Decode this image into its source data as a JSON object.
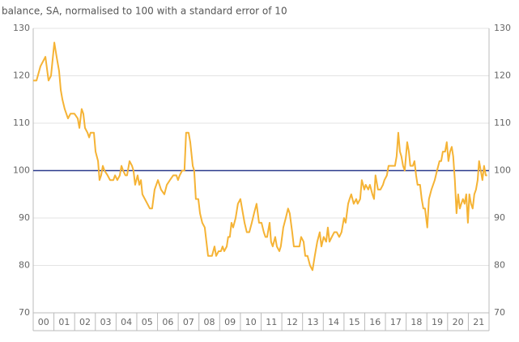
{
  "chart_data": {
    "type": "line",
    "subtitle": "balance, SA, normalised to 100 with a standard error of 10",
    "xlim": [
      2000,
      2022
    ],
    "xticks": [
      {
        "value": 2000,
        "label": "00"
      },
      {
        "value": 2001,
        "label": "01"
      },
      {
        "value": 2002,
        "label": "02"
      },
      {
        "value": 2003,
        "label": "03"
      },
      {
        "value": 2004,
        "label": "04"
      },
      {
        "value": 2005,
        "label": "05"
      },
      {
        "value": 2006,
        "label": "06"
      },
      {
        "value": 2007,
        "label": "07"
      },
      {
        "value": 2008,
        "label": "08"
      },
      {
        "value": 2009,
        "label": "09"
      },
      {
        "value": 2010,
        "label": "10"
      },
      {
        "value": 2011,
        "label": "11"
      },
      {
        "value": 2012,
        "label": "12"
      },
      {
        "value": 2013,
        "label": "13"
      },
      {
        "value": 2014,
        "label": "14"
      },
      {
        "value": 2015,
        "label": "15"
      },
      {
        "value": 2016,
        "label": "16"
      },
      {
        "value": 2017,
        "label": "17"
      },
      {
        "value": 2018,
        "label": "18"
      },
      {
        "value": 2019,
        "label": "19"
      },
      {
        "value": 2020,
        "label": "20"
      },
      {
        "value": 2021,
        "label": "21"
      }
    ],
    "ylim": [
      70,
      130
    ],
    "yticks": [
      70,
      80,
      90,
      100,
      110,
      120,
      130
    ],
    "grid": true,
    "reference_line": {
      "value": 100,
      "color": "#2b3a8c"
    },
    "x": [
      2000.0,
      2000.16,
      2000.35,
      2000.47,
      2000.59,
      2000.74,
      2000.86,
      2001.02,
      2001.13,
      2001.25,
      2001.33,
      2001.41,
      2001.52,
      2001.68,
      2001.8,
      2001.99,
      2002.15,
      2002.23,
      2002.34,
      2002.42,
      2002.5,
      2002.62,
      2002.7,
      2002.77,
      2002.93,
      2003.01,
      2003.13,
      2003.2,
      2003.28,
      2003.36,
      2003.44,
      2003.59,
      2003.71,
      2003.87,
      2003.95,
      2004.06,
      2004.18,
      2004.26,
      2004.34,
      2004.45,
      2004.53,
      2004.65,
      2004.77,
      2004.84,
      2004.92,
      2005.04,
      2005.12,
      2005.2,
      2005.27,
      2005.39,
      2005.51,
      2005.63,
      2005.74,
      2005.86,
      2006.02,
      2006.17,
      2006.33,
      2006.45,
      2006.6,
      2006.76,
      2006.91,
      2006.99,
      2007.07,
      2007.19,
      2007.3,
      2007.38,
      2007.5,
      2007.58,
      2007.7,
      2007.77,
      2007.85,
      2007.97,
      2008.05,
      2008.16,
      2008.28,
      2008.36,
      2008.44,
      2008.63,
      2008.75,
      2008.83,
      2008.95,
      2009.06,
      2009.14,
      2009.22,
      2009.34,
      2009.41,
      2009.49,
      2009.57,
      2009.65,
      2009.77,
      2009.88,
      2010.0,
      2010.12,
      2010.2,
      2010.31,
      2010.43,
      2010.55,
      2010.66,
      2010.78,
      2010.9,
      2011.02,
      2011.13,
      2011.21,
      2011.29,
      2011.41,
      2011.48,
      2011.56,
      2011.68,
      2011.76,
      2011.88,
      2011.95,
      2012.07,
      2012.19,
      2012.3,
      2012.38,
      2012.5,
      2012.58,
      2012.7,
      2012.85,
      2012.93,
      2013.05,
      2013.13,
      2013.24,
      2013.36,
      2013.48,
      2013.59,
      2013.71,
      2013.83,
      2013.91,
      2014.02,
      2014.14,
      2014.22,
      2014.3,
      2014.41,
      2014.53,
      2014.65,
      2014.77,
      2014.88,
      2015.0,
      2015.08,
      2015.2,
      2015.27,
      2015.35,
      2015.47,
      2015.59,
      2015.66,
      2015.78,
      2015.86,
      2015.98,
      2016.05,
      2016.17,
      2016.25,
      2016.37,
      2016.45,
      2016.52,
      2016.64,
      2016.76,
      2016.88,
      2016.95,
      2017.07,
      2017.15,
      2017.3,
      2017.46,
      2017.54,
      2017.62,
      2017.7,
      2017.77,
      2017.85,
      2017.93,
      2018.05,
      2018.13,
      2018.2,
      2018.32,
      2018.4,
      2018.48,
      2018.55,
      2018.67,
      2018.75,
      2018.83,
      2018.91,
      2019.02,
      2019.1,
      2019.22,
      2019.38,
      2019.49,
      2019.61,
      2019.69,
      2019.77,
      2019.88,
      2019.96,
      2020.04,
      2020.12,
      2020.2,
      2020.27,
      2020.35,
      2020.43,
      2020.51,
      2020.59,
      2020.66,
      2020.74,
      2020.82,
      2020.9,
      2020.98,
      2021.05,
      2021.13,
      2021.21,
      2021.29,
      2021.37,
      2021.45,
      2021.52,
      2021.6,
      2021.68,
      2021.76,
      2021.84,
      2021.91
    ],
    "series": [
      {
        "color": "#f5b335",
        "values": [
          119,
          119,
          122,
          123,
          124,
          119,
          120,
          127,
          124,
          121,
          117,
          115,
          113,
          111,
          112,
          112,
          111,
          109,
          113,
          112,
          109,
          108,
          107,
          108,
          108,
          104,
          102,
          98,
          99,
          101,
          100,
          99,
          98,
          98,
          99,
          98,
          99,
          101,
          100,
          99,
          99,
          102,
          101,
          100,
          97,
          99,
          97,
          98,
          95,
          94,
          93,
          92,
          92,
          96,
          98,
          96,
          95,
          97,
          98,
          99,
          99,
          98,
          99,
          100,
          100,
          108,
          108,
          106,
          101,
          100,
          94,
          94,
          91,
          89,
          88,
          85,
          82,
          82,
          84,
          82,
          83,
          83,
          84,
          83,
          84,
          86,
          86,
          89,
          88,
          90,
          93,
          94,
          91,
          89,
          87,
          87,
          89,
          91,
          93,
          89,
          89,
          87,
          86,
          86,
          89,
          85,
          84,
          86,
          84,
          83,
          84,
          88,
          90,
          92,
          91,
          87,
          84,
          84,
          84,
          86,
          85,
          82,
          82,
          80,
          79,
          82,
          85,
          87,
          84,
          86,
          85,
          88,
          85,
          86,
          87,
          87,
          86,
          87,
          90,
          89,
          93,
          94,
          95,
          93,
          94,
          93,
          94,
          98,
          96,
          97,
          96,
          97,
          95,
          94,
          99,
          96,
          96,
          97,
          98,
          99,
          101,
          101,
          101,
          103,
          108,
          104,
          103,
          101,
          100,
          106,
          104,
          101,
          101,
          102,
          99,
          97,
          97,
          94,
          92,
          92,
          88,
          94,
          96,
          98,
          100,
          102,
          102,
          104,
          104,
          106,
          102,
          104,
          105,
          103,
          98,
          91,
          95,
          92,
          93,
          94,
          93,
          95,
          89,
          95,
          93,
          92,
          95,
          96,
          98,
          102,
          100,
          98,
          101,
          99,
          99
        ]
      }
    ]
  }
}
